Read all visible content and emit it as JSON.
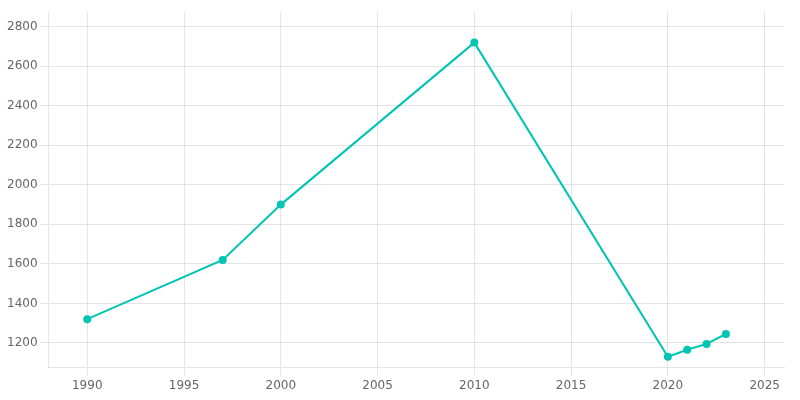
{
  "chart_data": {
    "type": "line",
    "x": [
      1990,
      1997,
      2000,
      2010,
      2020,
      2021,
      2022,
      2023
    ],
    "values": [
      1320,
      1620,
      1900,
      2720,
      1130,
      1165,
      1195,
      1245
    ],
    "color": "#00c4b4",
    "marker": "circle",
    "xlim": [
      1988,
      2026
    ],
    "ylim": [
      1075,
      2875
    ],
    "xticks": [
      1990,
      1995,
      2000,
      2005,
      2010,
      2015,
      2020,
      2025
    ],
    "yticks": [
      1200,
      1400,
      1600,
      1800,
      2000,
      2200,
      2400,
      2600,
      2800
    ],
    "grid": true
  }
}
